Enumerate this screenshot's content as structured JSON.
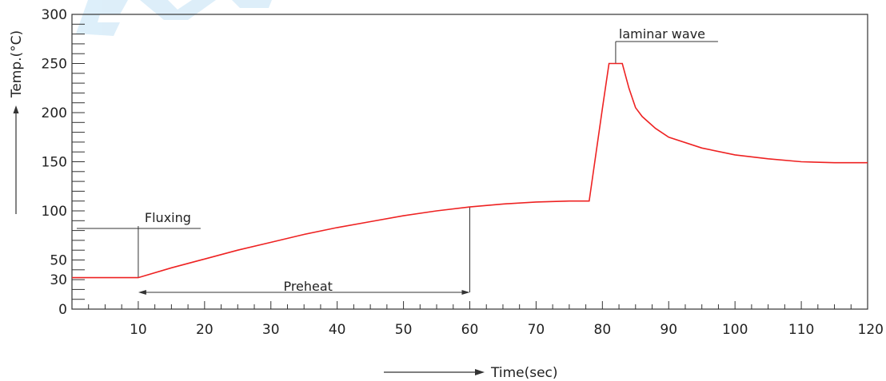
{
  "chart_data": {
    "type": "line",
    "xlabel": "Time(sec)",
    "ylabel": "Temp.(°C)",
    "xlim": [
      0,
      120
    ],
    "ylim": [
      0,
      300
    ],
    "x_ticks": [
      10,
      20,
      30,
      40,
      50,
      60,
      70,
      80,
      90,
      100,
      110,
      120
    ],
    "x_tick_labels": [
      "10",
      "20",
      "30",
      "40",
      "50",
      "60",
      "70",
      "80",
      "90",
      "100",
      "110",
      "120"
    ],
    "y_ticks": [
      0,
      30,
      50,
      100,
      150,
      200,
      250,
      300
    ],
    "y_tick_labels": [
      "0",
      "30",
      "50",
      "100",
      "150",
      "200",
      "250",
      "300"
    ],
    "grid": false,
    "series": [
      {
        "color": "#ee2222",
        "x": [
          0,
          10,
          15,
          20,
          25,
          30,
          35,
          40,
          45,
          50,
          55,
          60,
          65,
          70,
          75,
          78,
          80,
          81,
          83,
          84,
          85,
          86,
          88,
          90,
          95,
          100,
          105,
          110,
          115,
          120
        ],
        "y": [
          32,
          32,
          42,
          51,
          60,
          68,
          76,
          83,
          89,
          95,
          100,
          104,
          107,
          109,
          110,
          110,
          204,
          250,
          250,
          225,
          205,
          196,
          184,
          175,
          164,
          157,
          153,
          150,
          149,
          149
        ]
      }
    ],
    "annotations": {
      "fluxing": {
        "label": "Fluxing",
        "x_start": 0,
        "x_end": 10
      },
      "preheat": {
        "label": "Preheat",
        "x_start": 10,
        "x_end": 60
      },
      "laminar": {
        "label": "laminar wave",
        "x": 82
      }
    }
  }
}
